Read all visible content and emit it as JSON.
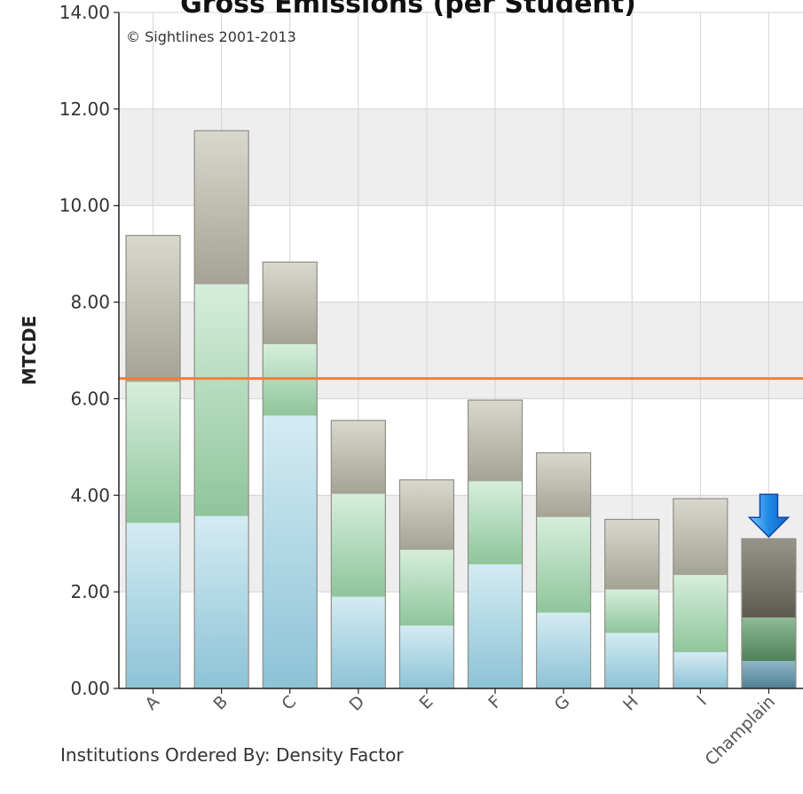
{
  "chart_data": {
    "type": "bar",
    "stacked": true,
    "title": "Gross Emissions (per Student)",
    "ylabel": "MTCDE",
    "xlabel": "",
    "copyright": "© Sightlines 2001-2013",
    "footnote": "Institutions Ordered By: Density Factor",
    "ylim": [
      0,
      14
    ],
    "yticks": [
      "0.00",
      "2.00",
      "4.00",
      "6.00",
      "8.00",
      "10.00",
      "12.00",
      "14.00"
    ],
    "categories": [
      "A",
      "B",
      "C",
      "D",
      "E",
      "F",
      "G",
      "H",
      "I",
      "Champlain"
    ],
    "highlight": "Champlain",
    "reference_line": 6.42,
    "series": [
      {
        "values": [
          3.43,
          3.57,
          5.65,
          1.9,
          1.3,
          2.57,
          1.57,
          1.15,
          0.75,
          0.57
        ]
      },
      {
        "values": [
          2.92,
          4.8,
          1.48,
          2.13,
          1.57,
          1.72,
          1.98,
          0.9,
          1.6,
          0.9
        ]
      },
      {
        "values": [
          3.03,
          3.18,
          1.7,
          1.52,
          1.45,
          1.68,
          1.33,
          1.45,
          1.58,
          1.63
        ]
      }
    ],
    "grid": true,
    "colors": {
      "base": "#9fcfe0",
      "middle": "#9fd0a6",
      "top": "#b7b6a7",
      "highlight_base": "#5f8ea3",
      "highlight_middle": "#5f9468",
      "highlight_top": "#6e6c60",
      "reference_line": "#f07f3c",
      "band": "#eeeeee",
      "arrow": "#1e88e5"
    }
  }
}
